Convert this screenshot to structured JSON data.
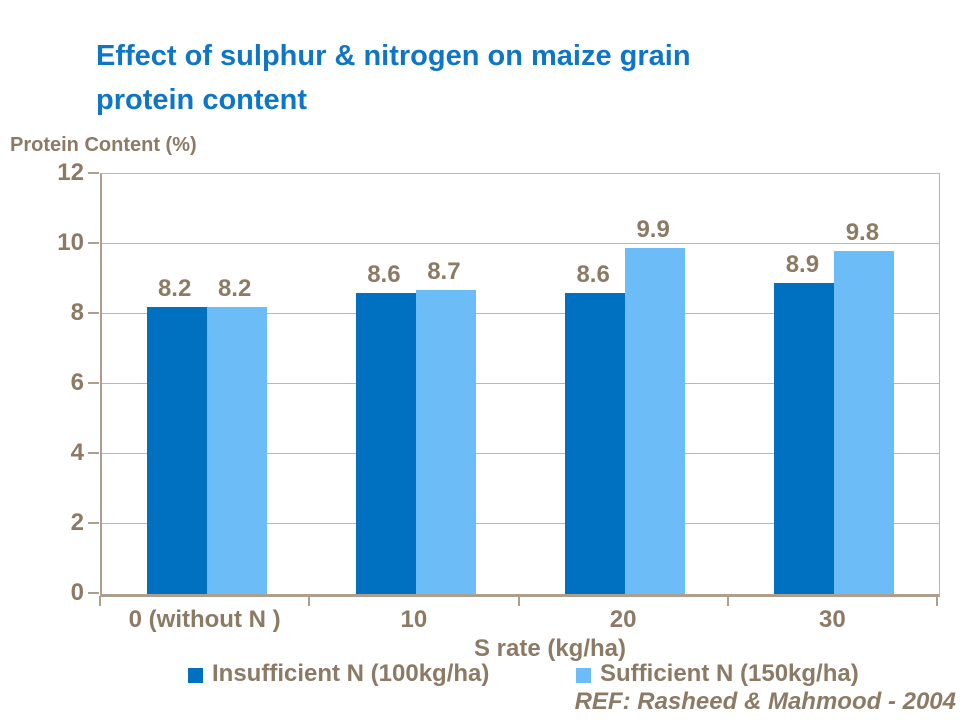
{
  "title": "Effect of sulphur & nitrogen on maize grain\nprotein content",
  "reference": "REF: Rasheed & Mahmood - 2004",
  "colors": {
    "title_text": "#0F76C6",
    "chart_text": "#8C7A64",
    "gridline": "#C3B5A6",
    "axis_line": "#AD9E8D",
    "background": "#FFFFFF",
    "series_dark_blue": "#0070C0",
    "series_light_blue": "#6CBCF8"
  },
  "chart_data": {
    "type": "bar",
    "title": "Effect of sulphur & nitrogen on maize grain protein content",
    "y_axis_title": "Protein Content (%)",
    "x_axis_title": "S rate (kg/ha)",
    "categories": [
      "0 (without N )",
      "10",
      "20",
      "30"
    ],
    "series": [
      {
        "name": "Insufficient N (100kg/ha)",
        "color": "#0070C0",
        "values": [
          8.2,
          8.6,
          8.6,
          8.9
        ]
      },
      {
        "name": "Sufficient N (150kg/ha)",
        "color": "#6CBCF8",
        "values": [
          8.2,
          8.7,
          9.9,
          9.8
        ]
      }
    ],
    "ylim": [
      0,
      12
    ],
    "ytick_step": 2,
    "yticks": [
      0,
      2,
      4,
      6,
      8,
      10,
      12
    ],
    "grid": true,
    "data_labels": true,
    "legend_position": "bottom"
  }
}
